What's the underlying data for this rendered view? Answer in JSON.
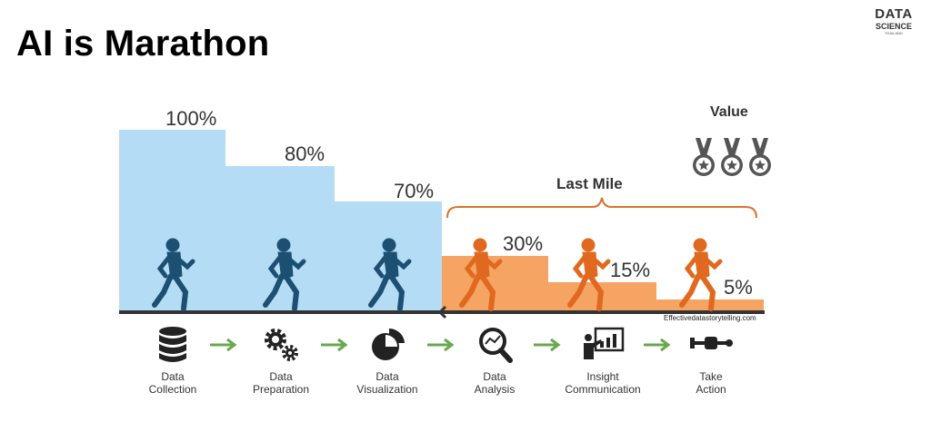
{
  "title": "AI is Marathon",
  "logo": {
    "line1": "DATA",
    "line2": "SCIENCE",
    "line3": "THAILAND"
  },
  "stages": {
    "percentages": [
      "100%",
      "80%",
      "70%",
      "30%",
      "15%",
      "5%"
    ],
    "last_mile_label": "Last Mile",
    "value_label": "Value",
    "credit": "Effectivedatastorytelling.com"
  },
  "steps": [
    {
      "line1": "Data",
      "line2": "Collection",
      "icon": "database-icon"
    },
    {
      "line1": "Data",
      "line2": "Preparation",
      "icon": "gears-icon"
    },
    {
      "line1": "Data",
      "line2": "Visualization",
      "icon": "pie-chart-icon"
    },
    {
      "line1": "Data",
      "line2": "Analysis",
      "icon": "magnifier-icon"
    },
    {
      "line1": "Insight",
      "line2": "Communication",
      "icon": "presenter-icon"
    },
    {
      "line1": "Take",
      "line2": "Action",
      "icon": "tools-fist-icon"
    }
  ],
  "colors": {
    "blue": "#b4dcf5",
    "blue_runner": "#1c4f72",
    "orange": "#f6a463",
    "orange_runner": "#e0691f",
    "arrow": "#6aa84f"
  }
}
